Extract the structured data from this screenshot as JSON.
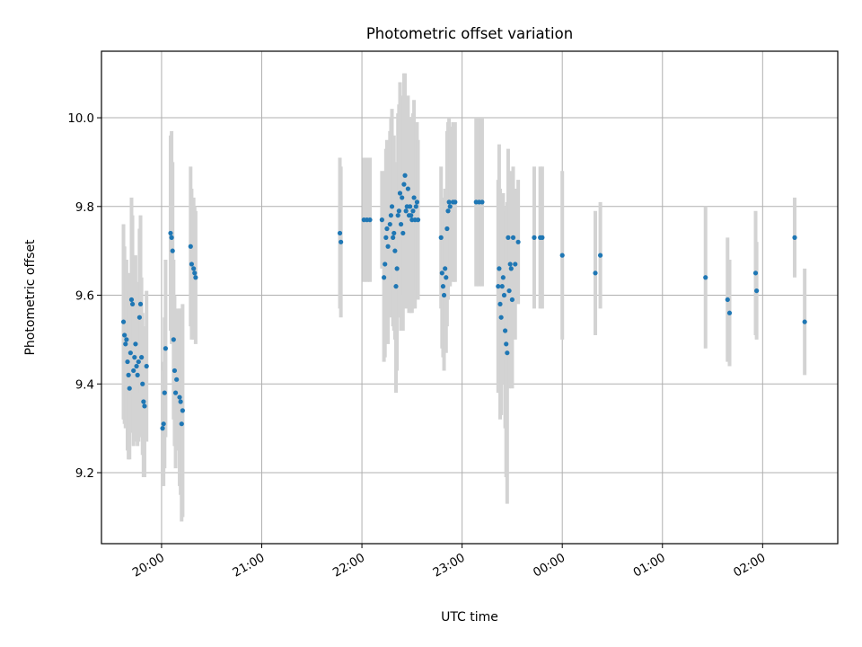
{
  "chart_data": {
    "type": "scatter",
    "title": "Photometric offset variation",
    "xlabel": "UTC time",
    "ylabel": "Photometric offset",
    "x_axis": "time (hours from 19:00 UTC, ticks hourly)",
    "xlim": [
      0.4,
      7.75
    ],
    "ylim": [
      9.04,
      10.15
    ],
    "xticks": [
      {
        "value": 1,
        "label": "20:00"
      },
      {
        "value": 2,
        "label": "21:00"
      },
      {
        "value": 3,
        "label": "22:00"
      },
      {
        "value": 4,
        "label": "23:00"
      },
      {
        "value": 5,
        "label": "00:00"
      },
      {
        "value": 6,
        "label": "01:00"
      },
      {
        "value": 7,
        "label": "02:00"
      }
    ],
    "yticks": [
      {
        "value": 9.2,
        "label": "9.2"
      },
      {
        "value": 9.4,
        "label": "9.4"
      },
      {
        "value": 9.6,
        "label": "9.6"
      },
      {
        "value": 9.8,
        "label": "9.8"
      },
      {
        "value": 10.0,
        "label": "10.0"
      }
    ],
    "grid": true,
    "colors": {
      "point": "#1f77b4",
      "errorbar": "#d3d3d3",
      "grid": "#b0b0b0"
    },
    "points": [
      {
        "x": 0.62,
        "y": 9.54,
        "err": 0.22
      },
      {
        "x": 0.63,
        "y": 9.51,
        "err": 0.2
      },
      {
        "x": 0.64,
        "y": 9.49,
        "err": 0.19
      },
      {
        "x": 0.65,
        "y": 9.5,
        "err": 0.18
      },
      {
        "x": 0.66,
        "y": 9.45,
        "err": 0.2
      },
      {
        "x": 0.67,
        "y": 9.42,
        "err": 0.19
      },
      {
        "x": 0.68,
        "y": 9.39,
        "err": 0.16
      },
      {
        "x": 0.69,
        "y": 9.47,
        "err": 0.18
      },
      {
        "x": 0.7,
        "y": 9.59,
        "err": 0.23
      },
      {
        "x": 0.71,
        "y": 9.58,
        "err": 0.2
      },
      {
        "x": 0.72,
        "y": 9.43,
        "err": 0.17
      },
      {
        "x": 0.73,
        "y": 9.46,
        "err": 0.18
      },
      {
        "x": 0.74,
        "y": 9.49,
        "err": 0.2
      },
      {
        "x": 0.75,
        "y": 9.44,
        "err": 0.17
      },
      {
        "x": 0.76,
        "y": 9.42,
        "err": 0.16
      },
      {
        "x": 0.77,
        "y": 9.45,
        "err": 0.18
      },
      {
        "x": 0.78,
        "y": 9.55,
        "err": 0.2
      },
      {
        "x": 0.79,
        "y": 9.58,
        "err": 0.2
      },
      {
        "x": 0.8,
        "y": 9.46,
        "err": 0.18
      },
      {
        "x": 0.81,
        "y": 9.4,
        "err": 0.16
      },
      {
        "x": 0.82,
        "y": 9.36,
        "err": 0.17
      },
      {
        "x": 0.83,
        "y": 9.35,
        "err": 0.16
      },
      {
        "x": 0.85,
        "y": 9.44,
        "err": 0.17
      },
      {
        "x": 1.01,
        "y": 9.3,
        "err": 0.13
      },
      {
        "x": 1.02,
        "y": 9.31,
        "err": 0.14
      },
      {
        "x": 1.03,
        "y": 9.38,
        "err": 0.17
      },
      {
        "x": 1.04,
        "y": 9.48,
        "err": 0.2
      },
      {
        "x": 1.09,
        "y": 9.74,
        "err": 0.22
      },
      {
        "x": 1.1,
        "y": 9.73,
        "err": 0.24
      },
      {
        "x": 1.11,
        "y": 9.7,
        "err": 0.2
      },
      {
        "x": 1.12,
        "y": 9.5,
        "err": 0.18
      },
      {
        "x": 1.13,
        "y": 9.43,
        "err": 0.17
      },
      {
        "x": 1.14,
        "y": 9.38,
        "err": 0.17
      },
      {
        "x": 1.15,
        "y": 9.41,
        "err": 0.16
      },
      {
        "x": 1.18,
        "y": 9.37,
        "err": 0.2
      },
      {
        "x": 1.19,
        "y": 9.36,
        "err": 0.21
      },
      {
        "x": 1.2,
        "y": 9.31,
        "err": 0.22
      },
      {
        "x": 1.21,
        "y": 9.34,
        "err": 0.24
      },
      {
        "x": 1.29,
        "y": 9.71,
        "err": 0.18
      },
      {
        "x": 1.3,
        "y": 9.67,
        "err": 0.17
      },
      {
        "x": 1.32,
        "y": 9.66,
        "err": 0.16
      },
      {
        "x": 1.33,
        "y": 9.65,
        "err": 0.15
      },
      {
        "x": 1.34,
        "y": 9.64,
        "err": 0.15
      },
      {
        "x": 2.78,
        "y": 9.74,
        "err": 0.17
      },
      {
        "x": 2.79,
        "y": 9.72,
        "err": 0.17
      },
      {
        "x": 3.02,
        "y": 9.77,
        "err": 0.14
      },
      {
        "x": 3.05,
        "y": 9.77,
        "err": 0.14
      },
      {
        "x": 3.08,
        "y": 9.77,
        "err": 0.14
      },
      {
        "x": 3.2,
        "y": 9.77,
        "err": 0.11
      },
      {
        "x": 3.22,
        "y": 9.64,
        "err": 0.19
      },
      {
        "x": 3.23,
        "y": 9.67,
        "err": 0.21
      },
      {
        "x": 3.24,
        "y": 9.73,
        "err": 0.2
      },
      {
        "x": 3.25,
        "y": 9.75,
        "err": 0.2
      },
      {
        "x": 3.26,
        "y": 9.71,
        "err": 0.22
      },
      {
        "x": 3.28,
        "y": 9.76,
        "err": 0.21
      },
      {
        "x": 3.29,
        "y": 9.78,
        "err": 0.22
      },
      {
        "x": 3.3,
        "y": 9.8,
        "err": 0.22
      },
      {
        "x": 3.31,
        "y": 9.73,
        "err": 0.2
      },
      {
        "x": 3.32,
        "y": 9.74,
        "err": 0.22
      },
      {
        "x": 3.33,
        "y": 9.7,
        "err": 0.2
      },
      {
        "x": 3.34,
        "y": 9.62,
        "err": 0.24
      },
      {
        "x": 3.35,
        "y": 9.66,
        "err": 0.23
      },
      {
        "x": 3.36,
        "y": 9.78,
        "err": 0.23
      },
      {
        "x": 3.37,
        "y": 9.79,
        "err": 0.24
      },
      {
        "x": 3.38,
        "y": 9.83,
        "err": 0.25
      },
      {
        "x": 3.39,
        "y": 9.76,
        "err": 0.24
      },
      {
        "x": 3.4,
        "y": 9.82,
        "err": 0.23
      },
      {
        "x": 3.41,
        "y": 9.74,
        "err": 0.22
      },
      {
        "x": 3.42,
        "y": 9.85,
        "err": 0.25
      },
      {
        "x": 3.43,
        "y": 9.87,
        "err": 0.23
      },
      {
        "x": 3.44,
        "y": 9.79,
        "err": 0.22
      },
      {
        "x": 3.45,
        "y": 9.8,
        "err": 0.2
      },
      {
        "x": 3.46,
        "y": 9.84,
        "err": 0.21
      },
      {
        "x": 3.47,
        "y": 9.78,
        "err": 0.22
      },
      {
        "x": 3.48,
        "y": 9.8,
        "err": 0.2
      },
      {
        "x": 3.49,
        "y": 9.78,
        "err": 0.22
      },
      {
        "x": 3.5,
        "y": 9.77,
        "err": 0.21
      },
      {
        "x": 3.51,
        "y": 9.79,
        "err": 0.22
      },
      {
        "x": 3.52,
        "y": 9.82,
        "err": 0.22
      },
      {
        "x": 3.53,
        "y": 9.77,
        "err": 0.2
      },
      {
        "x": 3.54,
        "y": 9.8,
        "err": 0.19
      },
      {
        "x": 3.55,
        "y": 9.81,
        "err": 0.18
      },
      {
        "x": 3.56,
        "y": 9.77,
        "err": 0.18
      },
      {
        "x": 3.79,
        "y": 9.73,
        "err": 0.16
      },
      {
        "x": 3.8,
        "y": 9.65,
        "err": 0.17
      },
      {
        "x": 3.81,
        "y": 9.62,
        "err": 0.16
      },
      {
        "x": 3.82,
        "y": 9.6,
        "err": 0.17
      },
      {
        "x": 3.83,
        "y": 9.66,
        "err": 0.18
      },
      {
        "x": 3.84,
        "y": 9.64,
        "err": 0.17
      },
      {
        "x": 3.85,
        "y": 9.75,
        "err": 0.22
      },
      {
        "x": 3.86,
        "y": 9.79,
        "err": 0.2
      },
      {
        "x": 3.87,
        "y": 9.81,
        "err": 0.19
      },
      {
        "x": 3.88,
        "y": 9.8,
        "err": 0.18
      },
      {
        "x": 3.91,
        "y": 9.81,
        "err": 0.18
      },
      {
        "x": 3.93,
        "y": 9.81,
        "err": 0.18
      },
      {
        "x": 4.14,
        "y": 9.81,
        "err": 0.19
      },
      {
        "x": 4.17,
        "y": 9.81,
        "err": 0.19
      },
      {
        "x": 4.2,
        "y": 9.81,
        "err": 0.19
      },
      {
        "x": 4.36,
        "y": 9.62,
        "err": 0.24
      },
      {
        "x": 4.37,
        "y": 9.66,
        "err": 0.28
      },
      {
        "x": 4.38,
        "y": 9.58,
        "err": 0.26
      },
      {
        "x": 4.39,
        "y": 9.55,
        "err": 0.22
      },
      {
        "x": 4.4,
        "y": 9.62,
        "err": 0.2
      },
      {
        "x": 4.41,
        "y": 9.64,
        "err": 0.19
      },
      {
        "x": 4.42,
        "y": 9.6,
        "err": 0.2
      },
      {
        "x": 4.43,
        "y": 9.52,
        "err": 0.22
      },
      {
        "x": 4.44,
        "y": 9.49,
        "err": 0.3
      },
      {
        "x": 4.45,
        "y": 9.47,
        "err": 0.34
      },
      {
        "x": 4.46,
        "y": 9.73,
        "err": 0.2
      },
      {
        "x": 4.47,
        "y": 9.61,
        "err": 0.22
      },
      {
        "x": 4.48,
        "y": 9.67,
        "err": 0.2
      },
      {
        "x": 4.49,
        "y": 9.66,
        "err": 0.22
      },
      {
        "x": 4.5,
        "y": 9.59,
        "err": 0.2
      },
      {
        "x": 4.51,
        "y": 9.73,
        "err": 0.16
      },
      {
        "x": 4.53,
        "y": 9.67,
        "err": 0.17
      },
      {
        "x": 4.56,
        "y": 9.72,
        "err": 0.14
      },
      {
        "x": 4.72,
        "y": 9.73,
        "err": 0.16
      },
      {
        "x": 4.78,
        "y": 9.73,
        "err": 0.16
      },
      {
        "x": 4.8,
        "y": 9.73,
        "err": 0.16
      },
      {
        "x": 5.0,
        "y": 9.69,
        "err": 0.19
      },
      {
        "x": 5.33,
        "y": 9.65,
        "err": 0.14
      },
      {
        "x": 5.38,
        "y": 9.69,
        "err": 0.12
      },
      {
        "x": 6.43,
        "y": 9.64,
        "err": 0.16
      },
      {
        "x": 6.65,
        "y": 9.59,
        "err": 0.14
      },
      {
        "x": 6.67,
        "y": 9.56,
        "err": 0.12
      },
      {
        "x": 6.93,
        "y": 9.65,
        "err": 0.14
      },
      {
        "x": 6.94,
        "y": 9.61,
        "err": 0.11
      },
      {
        "x": 7.32,
        "y": 9.73,
        "err": 0.09
      },
      {
        "x": 7.42,
        "y": 9.54,
        "err": 0.12
      }
    ]
  }
}
